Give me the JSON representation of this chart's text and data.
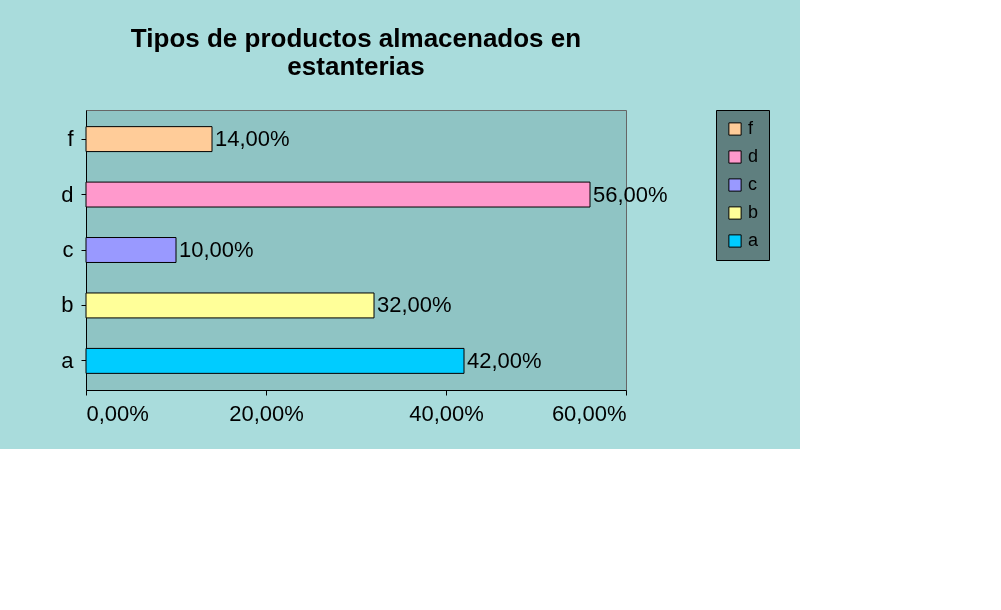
{
  "chart_data": {
    "type": "bar",
    "orientation": "horizontal",
    "title": "Tipos de productos almacenados en estanterias",
    "categories": [
      "f",
      "d",
      "c",
      "b",
      "a"
    ],
    "series": [
      {
        "name": "f",
        "color": "#ffcc99",
        "values": [
          14,
          null,
          null,
          null,
          null
        ],
        "value_labels": [
          "14,00%",
          null,
          null,
          null,
          null
        ]
      },
      {
        "name": "d",
        "color": "#ff99cc",
        "values": [
          null,
          56,
          null,
          null,
          null
        ],
        "value_labels": [
          null,
          "56,00%",
          null,
          null,
          null
        ]
      },
      {
        "name": "c",
        "color": "#9999ff",
        "values": [
          null,
          null,
          10,
          null,
          null
        ],
        "value_labels": [
          null,
          null,
          "10,00%",
          null,
          null
        ]
      },
      {
        "name": "b",
        "color": "#ffff99",
        "values": [
          null,
          null,
          null,
          32,
          null
        ],
        "value_labels": [
          null,
          null,
          null,
          "32,00%",
          null
        ]
      },
      {
        "name": "a",
        "color": "#00ccff",
        "values": [
          null,
          null,
          null,
          null,
          42
        ],
        "value_labels": [
          null,
          null,
          null,
          null,
          "42,00%"
        ]
      }
    ],
    "xlim": [
      0,
      60
    ],
    "xticks": [
      {
        "value": 0,
        "label": "0,00%"
      },
      {
        "value": 20,
        "label": "20,00%"
      },
      {
        "value": 40,
        "label": "40,00%"
      },
      {
        "value": 60,
        "label": "60,00%"
      }
    ],
    "legend": "right",
    "grid": false
  }
}
